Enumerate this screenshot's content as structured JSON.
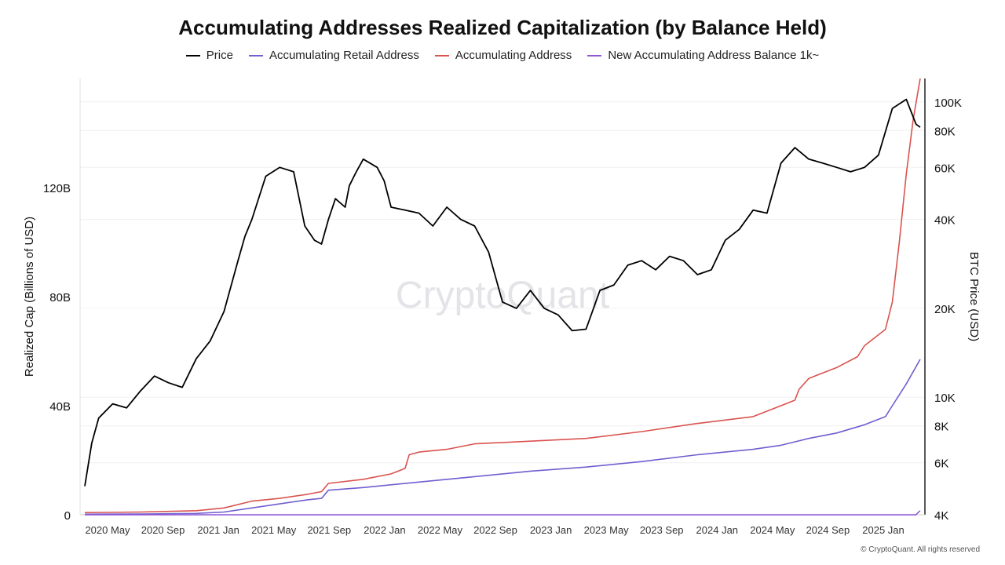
{
  "chart_data": {
    "type": "line",
    "title": "Accumulating Addresses Realized Capitalization (by Balance Held)",
    "watermark": "CryptoQuant",
    "credit": "© CryptoQuant. All rights reserved",
    "ylabel_left": "Realized Cap (Billions of USD)",
    "ylabel_right": "BTC Price (USD)",
    "x_ticks": [
      "2020 May",
      "2020 Sep",
      "2021 Jan",
      "2021 May",
      "2021 Sep",
      "2022 Jan",
      "2022 May",
      "2022 Sep",
      "2023 Jan",
      "2023 May",
      "2023 Sep",
      "2024 Jan",
      "2024 May",
      "2024 Sep",
      "2025 Jan"
    ],
    "x_range": [
      0,
      60
    ],
    "y_left_ticks": [
      {
        "v": 0,
        "label": "0"
      },
      {
        "v": 40,
        "label": "40B"
      },
      {
        "v": 80,
        "label": "80B"
      },
      {
        "v": 120,
        "label": "120B"
      }
    ],
    "y_left_range": [
      0,
      160
    ],
    "y_right_ticks": [
      {
        "v": 4000,
        "label": "4K"
      },
      {
        "v": 6000,
        "label": "6K"
      },
      {
        "v": 8000,
        "label": "8K"
      },
      {
        "v": 10000,
        "label": "10K"
      },
      {
        "v": 20000,
        "label": "20K"
      },
      {
        "v": 40000,
        "label": "40K"
      },
      {
        "v": 60000,
        "label": "60K"
      },
      {
        "v": 80000,
        "label": "80K"
      },
      {
        "v": 100000,
        "label": "100K"
      }
    ],
    "y_right_range": [
      4000,
      120000
    ],
    "y_right_scale": "log",
    "grid": true,
    "legend_position": "top-center",
    "series": [
      {
        "name": "Price",
        "axis": "right",
        "color": "#000000",
        "points": [
          [
            0,
            5000
          ],
          [
            0.5,
            7000
          ],
          [
            1,
            8500
          ],
          [
            2,
            9500
          ],
          [
            3,
            9200
          ],
          [
            4,
            10500
          ],
          [
            5,
            11800
          ],
          [
            6,
            11200
          ],
          [
            7,
            10800
          ],
          [
            8,
            13500
          ],
          [
            9,
            15500
          ],
          [
            10,
            19500
          ],
          [
            11,
            29000
          ],
          [
            11.5,
            35000
          ],
          [
            12,
            40000
          ],
          [
            13,
            56000
          ],
          [
            14,
            60000
          ],
          [
            15,
            58000
          ],
          [
            15.8,
            38000
          ],
          [
            16.5,
            34000
          ],
          [
            17,
            33000
          ],
          [
            17.5,
            40000
          ],
          [
            18,
            47000
          ],
          [
            18.7,
            44000
          ],
          [
            19,
            52000
          ],
          [
            19.5,
            58000
          ],
          [
            20,
            64000
          ],
          [
            21,
            60000
          ],
          [
            21.5,
            54000
          ],
          [
            22,
            44000
          ],
          [
            23,
            43000
          ],
          [
            24,
            42000
          ],
          [
            25,
            38000
          ],
          [
            26,
            44000
          ],
          [
            27,
            40000
          ],
          [
            28,
            38000
          ],
          [
            29,
            31000
          ],
          [
            30,
            21000
          ],
          [
            31,
            20000
          ],
          [
            32,
            23000
          ],
          [
            33,
            20000
          ],
          [
            34,
            19000
          ],
          [
            35,
            16800
          ],
          [
            36,
            17000
          ],
          [
            37,
            23000
          ],
          [
            38,
            24000
          ],
          [
            39,
            28000
          ],
          [
            40,
            29000
          ],
          [
            41,
            27000
          ],
          [
            42,
            30000
          ],
          [
            43,
            29000
          ],
          [
            44,
            26000
          ],
          [
            45,
            27000
          ],
          [
            46,
            34000
          ],
          [
            47,
            37000
          ],
          [
            48,
            43000
          ],
          [
            49,
            42000
          ],
          [
            50,
            62000
          ],
          [
            51,
            70000
          ],
          [
            52,
            64000
          ],
          [
            53,
            62000
          ],
          [
            54,
            60000
          ],
          [
            55,
            58000
          ],
          [
            56,
            60000
          ],
          [
            57,
            66000
          ],
          [
            58,
            95000
          ],
          [
            59,
            102000
          ],
          [
            59.7,
            84000
          ],
          [
            60,
            82000
          ]
        ]
      },
      {
        "name": "Accumulating Retail Address",
        "axis": "left",
        "color": "#6f5fd0",
        "points": [
          [
            0,
            0.2
          ],
          [
            4,
            0.3
          ],
          [
            8,
            0.5
          ],
          [
            10,
            1
          ],
          [
            12,
            2.5
          ],
          [
            14,
            4
          ],
          [
            16,
            5.5
          ],
          [
            17,
            6
          ],
          [
            17.5,
            9
          ],
          [
            20,
            10
          ],
          [
            24,
            12
          ],
          [
            28,
            14
          ],
          [
            32,
            16
          ],
          [
            36,
            17.5
          ],
          [
            40,
            19.5
          ],
          [
            44,
            22
          ],
          [
            48,
            24
          ],
          [
            50,
            25.5
          ],
          [
            52,
            28
          ],
          [
            54,
            30
          ],
          [
            56,
            33
          ],
          [
            57.5,
            36
          ],
          [
            58,
            40
          ],
          [
            59,
            48
          ],
          [
            60,
            57
          ]
        ]
      },
      {
        "name": "Accumulating Address",
        "axis": "left",
        "color": "#d9534f",
        "points": [
          [
            0,
            0.8
          ],
          [
            4,
            1
          ],
          [
            8,
            1.5
          ],
          [
            10,
            2.5
          ],
          [
            12,
            5
          ],
          [
            14,
            6
          ],
          [
            16,
            7.5
          ],
          [
            17,
            8.5
          ],
          [
            17.5,
            11.5
          ],
          [
            20,
            13
          ],
          [
            22,
            15
          ],
          [
            23,
            17
          ],
          [
            23.3,
            22
          ],
          [
            24,
            23
          ],
          [
            26,
            24
          ],
          [
            28,
            26
          ],
          [
            32,
            27
          ],
          [
            36,
            28
          ],
          [
            40,
            30.5
          ],
          [
            44,
            33.5
          ],
          [
            48,
            36
          ],
          [
            50,
            40
          ],
          [
            51,
            42
          ],
          [
            51.3,
            46
          ],
          [
            52,
            50
          ],
          [
            54,
            54
          ],
          [
            55.5,
            58
          ],
          [
            56,
            62
          ],
          [
            57.5,
            68
          ],
          [
            58,
            78
          ],
          [
            58.5,
            100
          ],
          [
            59,
            125
          ],
          [
            59.5,
            145
          ],
          [
            60,
            160
          ]
        ]
      },
      {
        "name": "New Accumulating Address Balance 1k~",
        "axis": "left",
        "color": "#8f56d6",
        "points": [
          [
            0,
            0
          ],
          [
            59.7,
            0
          ],
          [
            59.85,
            0.8
          ],
          [
            60,
            1.5
          ]
        ]
      }
    ]
  }
}
